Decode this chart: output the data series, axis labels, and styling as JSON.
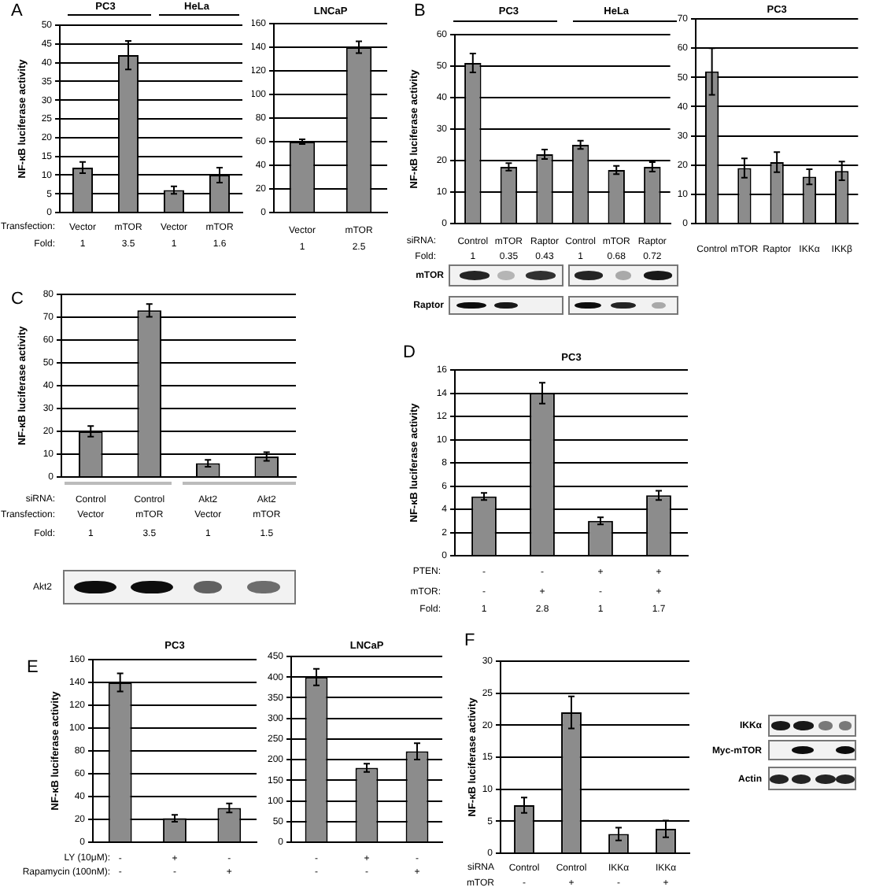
{
  "chart_data": [
    {
      "type": "bar",
      "ylabel": "NF-κB luciferase activity",
      "categories": [
        "Vector",
        "mTOR",
        "Vector",
        "mTOR"
      ],
      "values": [
        12,
        42,
        6,
        10
      ],
      "errors": [
        1.5,
        3.8,
        1,
        2
      ],
      "color": "#8c8c8c",
      "ylim": [
        0,
        50
      ],
      "yticks": [
        0,
        5,
        10,
        15,
        20,
        25,
        30,
        35,
        40,
        45,
        50
      ],
      "grid": "y",
      "annotations": [
        "A",
        "PC3",
        "HeLa",
        "Transfection:",
        "Fold:",
        "1",
        "3.5",
        "1",
        "1.6"
      ]
    },
    {
      "type": "bar",
      "title": "LNCaP",
      "categories": [
        "Vector",
        "mTOR"
      ],
      "values": [
        60,
        140
      ],
      "errors": [
        2,
        5
      ],
      "color": "#8c8c8c",
      "ylim": [
        0,
        160
      ],
      "yticks": [
        0,
        20,
        40,
        60,
        80,
        100,
        120,
        140,
        160
      ],
      "grid": "y",
      "annotations": [
        "1",
        "2.5"
      ]
    },
    {
      "type": "bar",
      "ylabel": "NF-κB luciferase activity",
      "categories": [
        "Control",
        "mTOR",
        "Raptor",
        "Control",
        "mTOR",
        "Raptor"
      ],
      "values": [
        51,
        18,
        22,
        25,
        17,
        18
      ],
      "errors": [
        3,
        1.2,
        1.5,
        1.3,
        1.3,
        1.5
      ],
      "color": "#8c8c8c",
      "ylim": [
        0,
        60
      ],
      "yticks": [
        0,
        10,
        20,
        30,
        40,
        50,
        60
      ],
      "grid": "y",
      "annotations": [
        "B",
        "PC3",
        "HeLa",
        "siRNA:",
        "Fold:",
        "1",
        "0.35",
        "0.43",
        "1",
        "0.68",
        "0.72",
        "mTOR",
        "Raptor"
      ]
    },
    {
      "type": "bar",
      "title": "PC3",
      "categories": [
        "Control",
        "mTOR",
        "Raptor",
        "IKKα",
        "IKKβ"
      ],
      "values": [
        52,
        19,
        21,
        16,
        18
      ],
      "errors": [
        8,
        3.3,
        3.4,
        2.6,
        3.2
      ],
      "color": "#8c8c8c",
      "ylim": [
        0,
        70
      ],
      "yticks": [
        0,
        10,
        20,
        30,
        40,
        50,
        60,
        70
      ],
      "grid": "y"
    },
    {
      "type": "bar",
      "ylabel": "NF-κB luciferase activity",
      "categories": [
        "Control",
        "Control",
        "Akt2",
        "Akt2"
      ],
      "values": [
        20,
        73,
        6,
        9
      ],
      "errors": [
        2.3,
        2.8,
        1.5,
        1.9
      ],
      "color": "#8c8c8c",
      "ylim": [
        0,
        80
      ],
      "yticks": [
        0,
        10,
        20,
        30,
        40,
        50,
        60,
        70,
        80
      ],
      "grid": "y",
      "annotations": [
        "C",
        "siRNA:",
        "Transfection:",
        "Vector",
        "mTOR",
        "Vector",
        "mTOR",
        "Fold:",
        "1",
        "3.5",
        "1",
        "1.5",
        "Akt2"
      ]
    },
    {
      "type": "bar",
      "title": "PC3",
      "ylabel": "NF-κB luciferase activity",
      "categories": [
        "-",
        "-",
        "+",
        "+"
      ],
      "values": [
        5.1,
        14,
        3,
        5.2
      ],
      "errors": [
        0.3,
        0.9,
        0.3,
        0.4
      ],
      "color": "#8c8c8c",
      "ylim": [
        0,
        16
      ],
      "yticks": [
        0,
        2,
        4,
        6,
        8,
        10,
        12,
        14,
        16
      ],
      "grid": "y",
      "annotations": [
        "D",
        "PTEN:",
        "mTOR:",
        "-",
        "+",
        "-",
        "+",
        "Fold:",
        "1",
        "2.8",
        "1",
        "1.7"
      ]
    },
    {
      "type": "bar",
      "title": "PC3",
      "ylabel": "NF-κB luciferase activity",
      "categories": [
        "-",
        "+",
        "-"
      ],
      "values": [
        140,
        21,
        30
      ],
      "errors": [
        8,
        3,
        4
      ],
      "color": "#8c8c8c",
      "ylim": [
        0,
        160
      ],
      "yticks": [
        0,
        20,
        40,
        60,
        80,
        100,
        120,
        140,
        160
      ],
      "grid": "y",
      "annotations": [
        "E",
        "LY (10μM):",
        "Rapamycin (100nM):",
        "-",
        "-",
        "+"
      ]
    },
    {
      "type": "bar",
      "title": "LNCaP",
      "categories": [
        "-",
        "+",
        "-"
      ],
      "values": [
        400,
        180,
        220
      ],
      "errors": [
        20,
        10,
        20
      ],
      "color": "#8c8c8c",
      "ylim": [
        0,
        450
      ],
      "yticks": [
        0,
        50,
        100,
        150,
        200,
        250,
        300,
        350,
        400,
        450
      ],
      "grid": "y",
      "annotations": [
        "-",
        "-",
        "+"
      ]
    },
    {
      "type": "bar",
      "ylabel": "NF-κB luciferase activity",
      "categories": [
        "Control",
        "Control",
        "IKKα",
        "IKKα"
      ],
      "values": [
        7.5,
        22,
        3,
        3.8
      ],
      "errors": [
        1.2,
        2.5,
        1,
        1.3
      ],
      "color": "#8c8c8c",
      "ylim": [
        0,
        30
      ],
      "yticks": [
        0,
        5,
        10,
        15,
        20,
        25,
        30
      ],
      "grid": "y",
      "annotations": [
        "F",
        "siRNA",
        "mTOR",
        "-",
        "+",
        "-",
        "+",
        "IKKα",
        "Myc-mTOR",
        "Actin"
      ]
    }
  ]
}
